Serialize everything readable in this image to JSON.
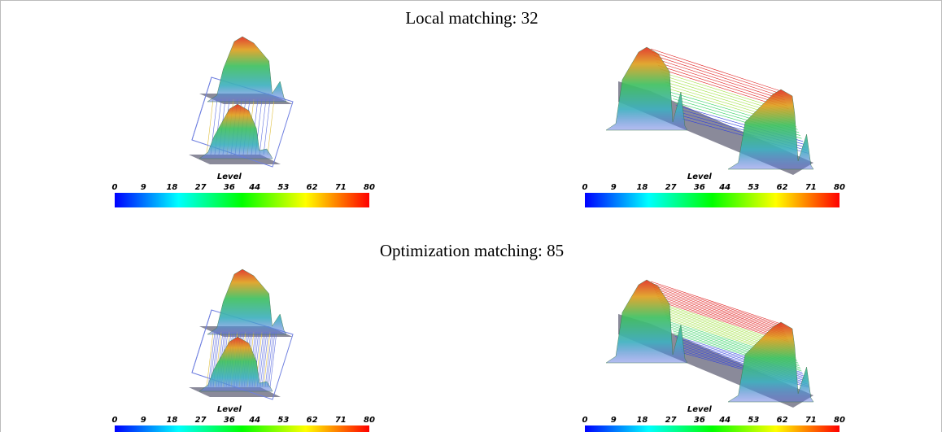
{
  "sections": [
    {
      "title": "Local matching: 32"
    },
    {
      "title": "Optimization matching: 85"
    }
  ],
  "colorbar": {
    "label": "Level",
    "ticks": [
      0,
      9,
      18,
      27,
      36,
      44,
      53,
      62,
      71,
      80
    ]
  }
}
